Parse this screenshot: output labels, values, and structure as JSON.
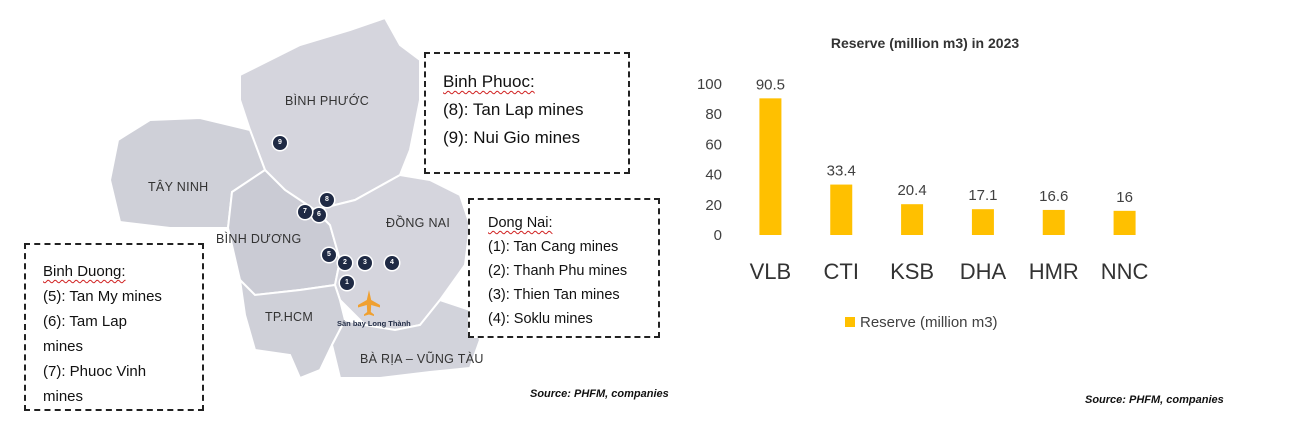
{
  "map": {
    "regions": {
      "binh_phuoc": "BÌNH PHƯỚC",
      "tay_ninh": "TÂY NINH",
      "binh_duong": "BÌNH DƯƠNG",
      "dong_nai": "ĐỒNG NAI",
      "tphcm": "TP.HCM",
      "ba_ria": "BÀ RỊA – VŨNG TÀU"
    },
    "markers": [
      "1",
      "2",
      "3",
      "4",
      "5",
      "6",
      "7",
      "8",
      "9"
    ],
    "airport_label": "Sân bay Long Thành",
    "airport_icon": "airplane-icon",
    "colors": {
      "region_fill": "#d5d5dd",
      "marker": "#1f2a44",
      "airport": "#f0a030"
    }
  },
  "legends": {
    "binh_phuoc": {
      "title": "Binh Phuoc:",
      "items": [
        "(8): Tan Lap mines",
        "(9): Nui Gio mines"
      ]
    },
    "dong_nai": {
      "title": "Dong Nai:",
      "items": [
        "(1): Tan Cang mines",
        "(2): Thanh Phu mines",
        "(3): Thien Tan mines",
        "(4): Soklu mines"
      ]
    },
    "binh_duong": {
      "title": "Binh Duong:",
      "lines": [
        "(5): Tan My mines",
        "(6): Tam Lap",
        "mines",
        "(7): Phuoc Vinh",
        "mines"
      ]
    }
  },
  "sources": {
    "map": "Source: PHFM, companies",
    "chart": "Source: PHFM, companies"
  },
  "chart_data": {
    "type": "bar",
    "title": "Reserve (million m3) in 2023",
    "categories": [
      "VLB",
      "CTI",
      "KSB",
      "DHA",
      "HMR",
      "NNC"
    ],
    "series": [
      {
        "name": "Reserve (million m3)",
        "values": [
          90.5,
          33.4,
          20.4,
          17.1,
          16.6,
          16
        ],
        "color": "#ffc000"
      }
    ],
    "data_labels": [
      "90.5",
      "33.4",
      "20.4",
      "17.1",
      "16.6",
      "16"
    ],
    "ylim": [
      0,
      100
    ],
    "yticks": [
      0,
      20,
      40,
      60,
      80,
      100
    ],
    "grid": false,
    "legend": "bottom"
  }
}
